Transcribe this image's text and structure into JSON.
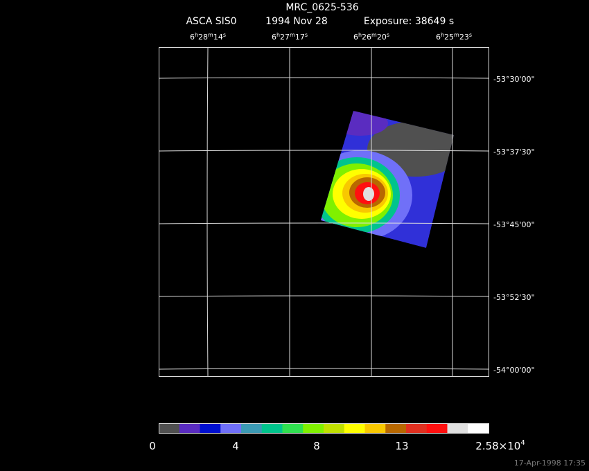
{
  "header": {
    "title": "MRC_0625-536",
    "instrument": "ASCA SIS0",
    "date": "1994 Nov 28",
    "exposure": "Exposure: 38649 s"
  },
  "ra_labels": [
    [
      "6",
      "h",
      "28",
      "m",
      "14",
      "s"
    ],
    [
      "6",
      "h",
      "27",
      "m",
      "17",
      "s"
    ],
    [
      "6",
      "h",
      "26",
      "m",
      "20",
      "s"
    ],
    [
      "6",
      "h",
      "25",
      "m",
      "23",
      "s"
    ]
  ],
  "dec_labels": [
    "-53°30'00\"",
    "-53°37'30\"",
    "-53°45'00\"",
    "-53°52'30\"",
    "-54°00'00\""
  ],
  "colorbar": {
    "colors": [
      "#505050",
      "#5a2cc0",
      "#0010d0",
      "#7070f8",
      "#3c9ab4",
      "#00c48c",
      "#30e050",
      "#80f000",
      "#c0e000",
      "#ffff00",
      "#f8c800",
      "#b86800",
      "#e03020",
      "#ff1010",
      "#e0e0e0",
      "#ffffff"
    ],
    "labels": [
      [
        "0"
      ],
      [
        "4"
      ],
      [
        "8"
      ],
      [
        "13"
      ],
      [
        "2.58×10",
        "4"
      ]
    ]
  },
  "footer": "17-Apr-1998 17:35"
}
